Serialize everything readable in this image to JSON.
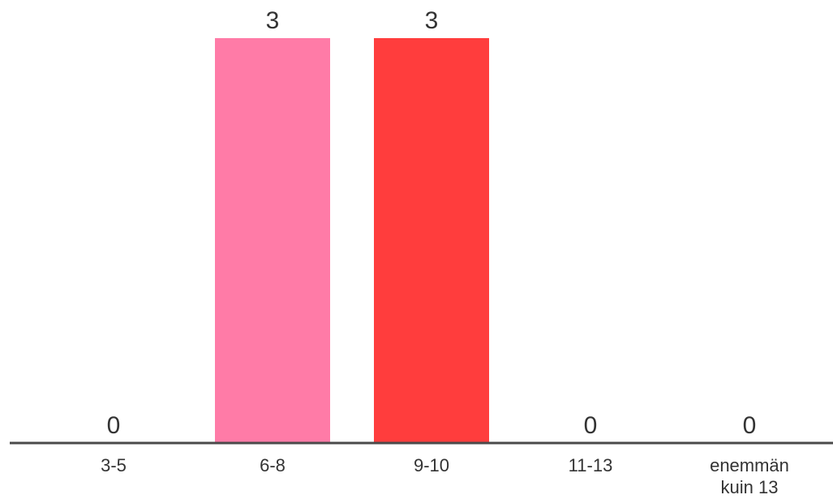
{
  "chart_data": {
    "type": "bar",
    "categories": [
      "3-5",
      "6-8",
      "9-10",
      "11-13",
      "enemmän kuin 13"
    ],
    "category_lines": [
      [
        "3-5"
      ],
      [
        "6-8"
      ],
      [
        "9-10"
      ],
      [
        "11-13"
      ],
      [
        "enemmän",
        "kuin 13"
      ]
    ],
    "values": [
      0,
      3,
      3,
      0,
      0
    ],
    "colors": [
      "#ff7ba7",
      "#ff7ba7",
      "#ff3d3d",
      "#ff7ba7",
      "#ff7ba7"
    ],
    "ylim": [
      0,
      3
    ],
    "grid": false,
    "title": "",
    "xlabel": "",
    "ylabel": "",
    "axis_color": "#4a4a4a"
  }
}
